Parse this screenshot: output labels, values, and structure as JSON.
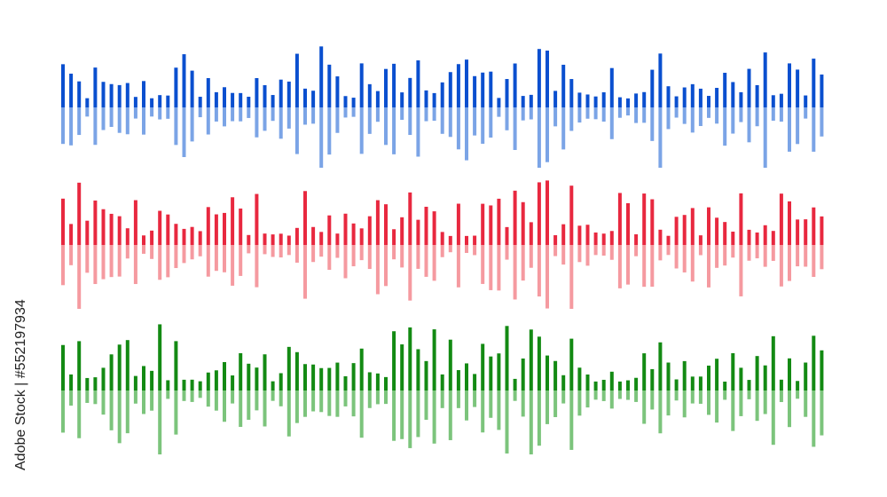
{
  "watermark": "Adobe Stock | #552197934"
}
